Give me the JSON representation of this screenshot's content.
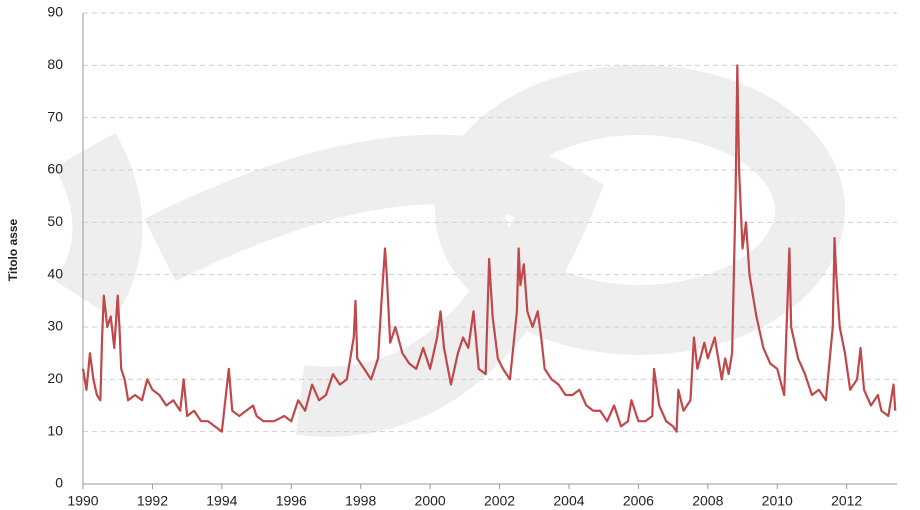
{
  "chart_data": {
    "type": "line",
    "y_label": "Titolo asse",
    "x": [
      1990.0,
      1990.1,
      1990.2,
      1990.3,
      1990.4,
      1990.5,
      1990.55,
      1990.6,
      1990.7,
      1990.8,
      1990.9,
      1991.0,
      1991.05,
      1991.1,
      1991.2,
      1991.3,
      1991.5,
      1991.7,
      1991.85,
      1992.0,
      1992.2,
      1992.4,
      1992.6,
      1992.8,
      1992.9,
      1993.0,
      1993.2,
      1993.4,
      1993.6,
      1993.8,
      1994.0,
      1994.1,
      1994.2,
      1994.3,
      1994.5,
      1994.7,
      1994.9,
      1995.0,
      1995.2,
      1995.5,
      1995.8,
      1996.0,
      1996.2,
      1996.4,
      1996.6,
      1996.8,
      1997.0,
      1997.2,
      1997.4,
      1997.6,
      1997.8,
      1997.85,
      1997.9,
      1998.1,
      1998.3,
      1998.5,
      1998.6,
      1998.7,
      1998.75,
      1998.85,
      1999.0,
      1999.2,
      1999.4,
      1999.6,
      1999.8,
      2000.0,
      2000.2,
      2000.3,
      2000.4,
      2000.6,
      2000.8,
      2000.95,
      2001.1,
      2001.25,
      2001.4,
      2001.6,
      2001.7,
      2001.8,
      2001.95,
      2002.1,
      2002.3,
      2002.5,
      2002.55,
      2002.6,
      2002.7,
      2002.8,
      2002.95,
      2003.1,
      2003.2,
      2003.3,
      2003.5,
      2003.7,
      2003.9,
      2004.1,
      2004.3,
      2004.5,
      2004.7,
      2004.9,
      2005.1,
      2005.3,
      2005.5,
      2005.7,
      2005.8,
      2006.0,
      2006.2,
      2006.4,
      2006.45,
      2006.6,
      2006.8,
      2007.0,
      2007.1,
      2007.15,
      2007.3,
      2007.5,
      2007.6,
      2007.7,
      2007.9,
      2008.0,
      2008.2,
      2008.4,
      2008.5,
      2008.6,
      2008.7,
      2008.8,
      2008.85,
      2008.9,
      2009.0,
      2009.1,
      2009.2,
      2009.4,
      2009.6,
      2009.8,
      2010.0,
      2010.2,
      2010.35,
      2010.4,
      2010.6,
      2010.8,
      2011.0,
      2011.2,
      2011.4,
      2011.6,
      2011.65,
      2011.7,
      2011.8,
      2011.95,
      2012.1,
      2012.3,
      2012.4,
      2012.5,
      2012.7,
      2012.9,
      2013.0,
      2013.2,
      2013.35,
      2013.4
    ],
    "series": [
      {
        "name": "Titolo asse",
        "color": "#c0474a",
        "values": [
          22,
          18,
          25,
          20,
          17,
          16,
          28,
          36,
          30,
          32,
          26,
          36,
          30,
          22,
          20,
          16,
          17,
          16,
          20,
          18,
          17,
          15,
          16,
          14,
          20,
          13,
          14,
          12,
          12,
          11,
          10,
          16,
          22,
          14,
          13,
          14,
          15,
          13,
          12,
          12,
          13,
          12,
          16,
          14,
          19,
          16,
          17,
          21,
          19,
          20,
          28,
          35,
          24,
          22,
          20,
          24,
          35,
          45,
          40,
          27,
          30,
          25,
          23,
          22,
          26,
          22,
          28,
          33,
          26,
          19,
          25,
          28,
          26,
          33,
          22,
          21,
          43,
          32,
          24,
          22,
          20,
          33,
          45,
          38,
          42,
          33,
          30,
          33,
          28,
          22,
          20,
          19,
          17,
          17,
          18,
          15,
          14,
          14,
          12,
          15,
          11,
          12,
          16,
          12,
          12,
          13,
          22,
          15,
          12,
          11,
          10,
          18,
          14,
          16,
          28,
          22,
          27,
          24,
          28,
          20,
          24,
          21,
          25,
          55,
          80,
          60,
          45,
          50,
          40,
          32,
          26,
          23,
          22,
          17,
          45,
          30,
          24,
          21,
          17,
          18,
          16,
          30,
          47,
          40,
          30,
          25,
          18,
          20,
          26,
          18,
          15,
          17,
          14,
          13,
          19,
          14
        ]
      }
    ],
    "xlim": [
      1990,
      2013.45
    ],
    "xticks": [
      1990,
      1992,
      1994,
      1996,
      1998,
      2000,
      2002,
      2004,
      2006,
      2008,
      2010,
      2012
    ],
    "ylim": [
      0,
      90
    ],
    "yticks": [
      0,
      10,
      20,
      30,
      40,
      50,
      60,
      70,
      80,
      90
    ],
    "grid": true
  }
}
